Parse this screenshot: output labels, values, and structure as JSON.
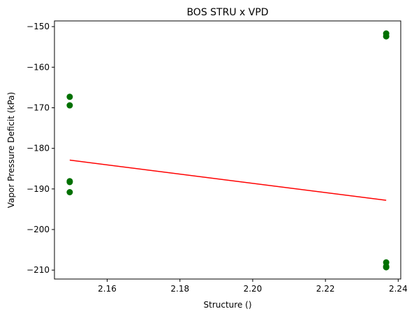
{
  "chart_data": {
    "type": "scatter",
    "title": "BOS STRU x VPD",
    "xlabel": "Structure ()",
    "ylabel": "Vapor Pressure Deficit (kPa)",
    "xlim": [
      2.1455,
      2.2407
    ],
    "ylim": [
      -212.2,
      -148.6
    ],
    "xticks": [
      2.16,
      2.18,
      2.2,
      2.22,
      2.24
    ],
    "xtick_labels": [
      "2.16",
      "2.18",
      "2.20",
      "2.22",
      "2.24"
    ],
    "yticks": [
      -210,
      -200,
      -190,
      -180,
      -170,
      -160,
      -150
    ],
    "ytick_labels": [
      "−210",
      "−200",
      "−190",
      "−180",
      "−170",
      "−160",
      "−150"
    ],
    "grid": false,
    "series": [
      {
        "kind": "scatter",
        "color": "#007000",
        "points": [
          {
            "x": 2.1497,
            "y": -167.3
          },
          {
            "x": 2.1497,
            "y": -169.4
          },
          {
            "x": 2.1497,
            "y": -188.1
          },
          {
            "x": 2.1497,
            "y": -188.3
          },
          {
            "x": 2.1497,
            "y": -190.8
          },
          {
            "x": 2.2367,
            "y": -151.7
          },
          {
            "x": 2.2367,
            "y": -152.4
          },
          {
            "x": 2.2367,
            "y": -208.1
          },
          {
            "x": 2.2367,
            "y": -209.1
          },
          {
            "x": 2.2367,
            "y": -209.3
          }
        ]
      },
      {
        "kind": "line",
        "color": "#ff0000",
        "points": [
          {
            "x": 2.1497,
            "y": -182.9
          },
          {
            "x": 2.2367,
            "y": -192.8
          }
        ]
      }
    ]
  }
}
